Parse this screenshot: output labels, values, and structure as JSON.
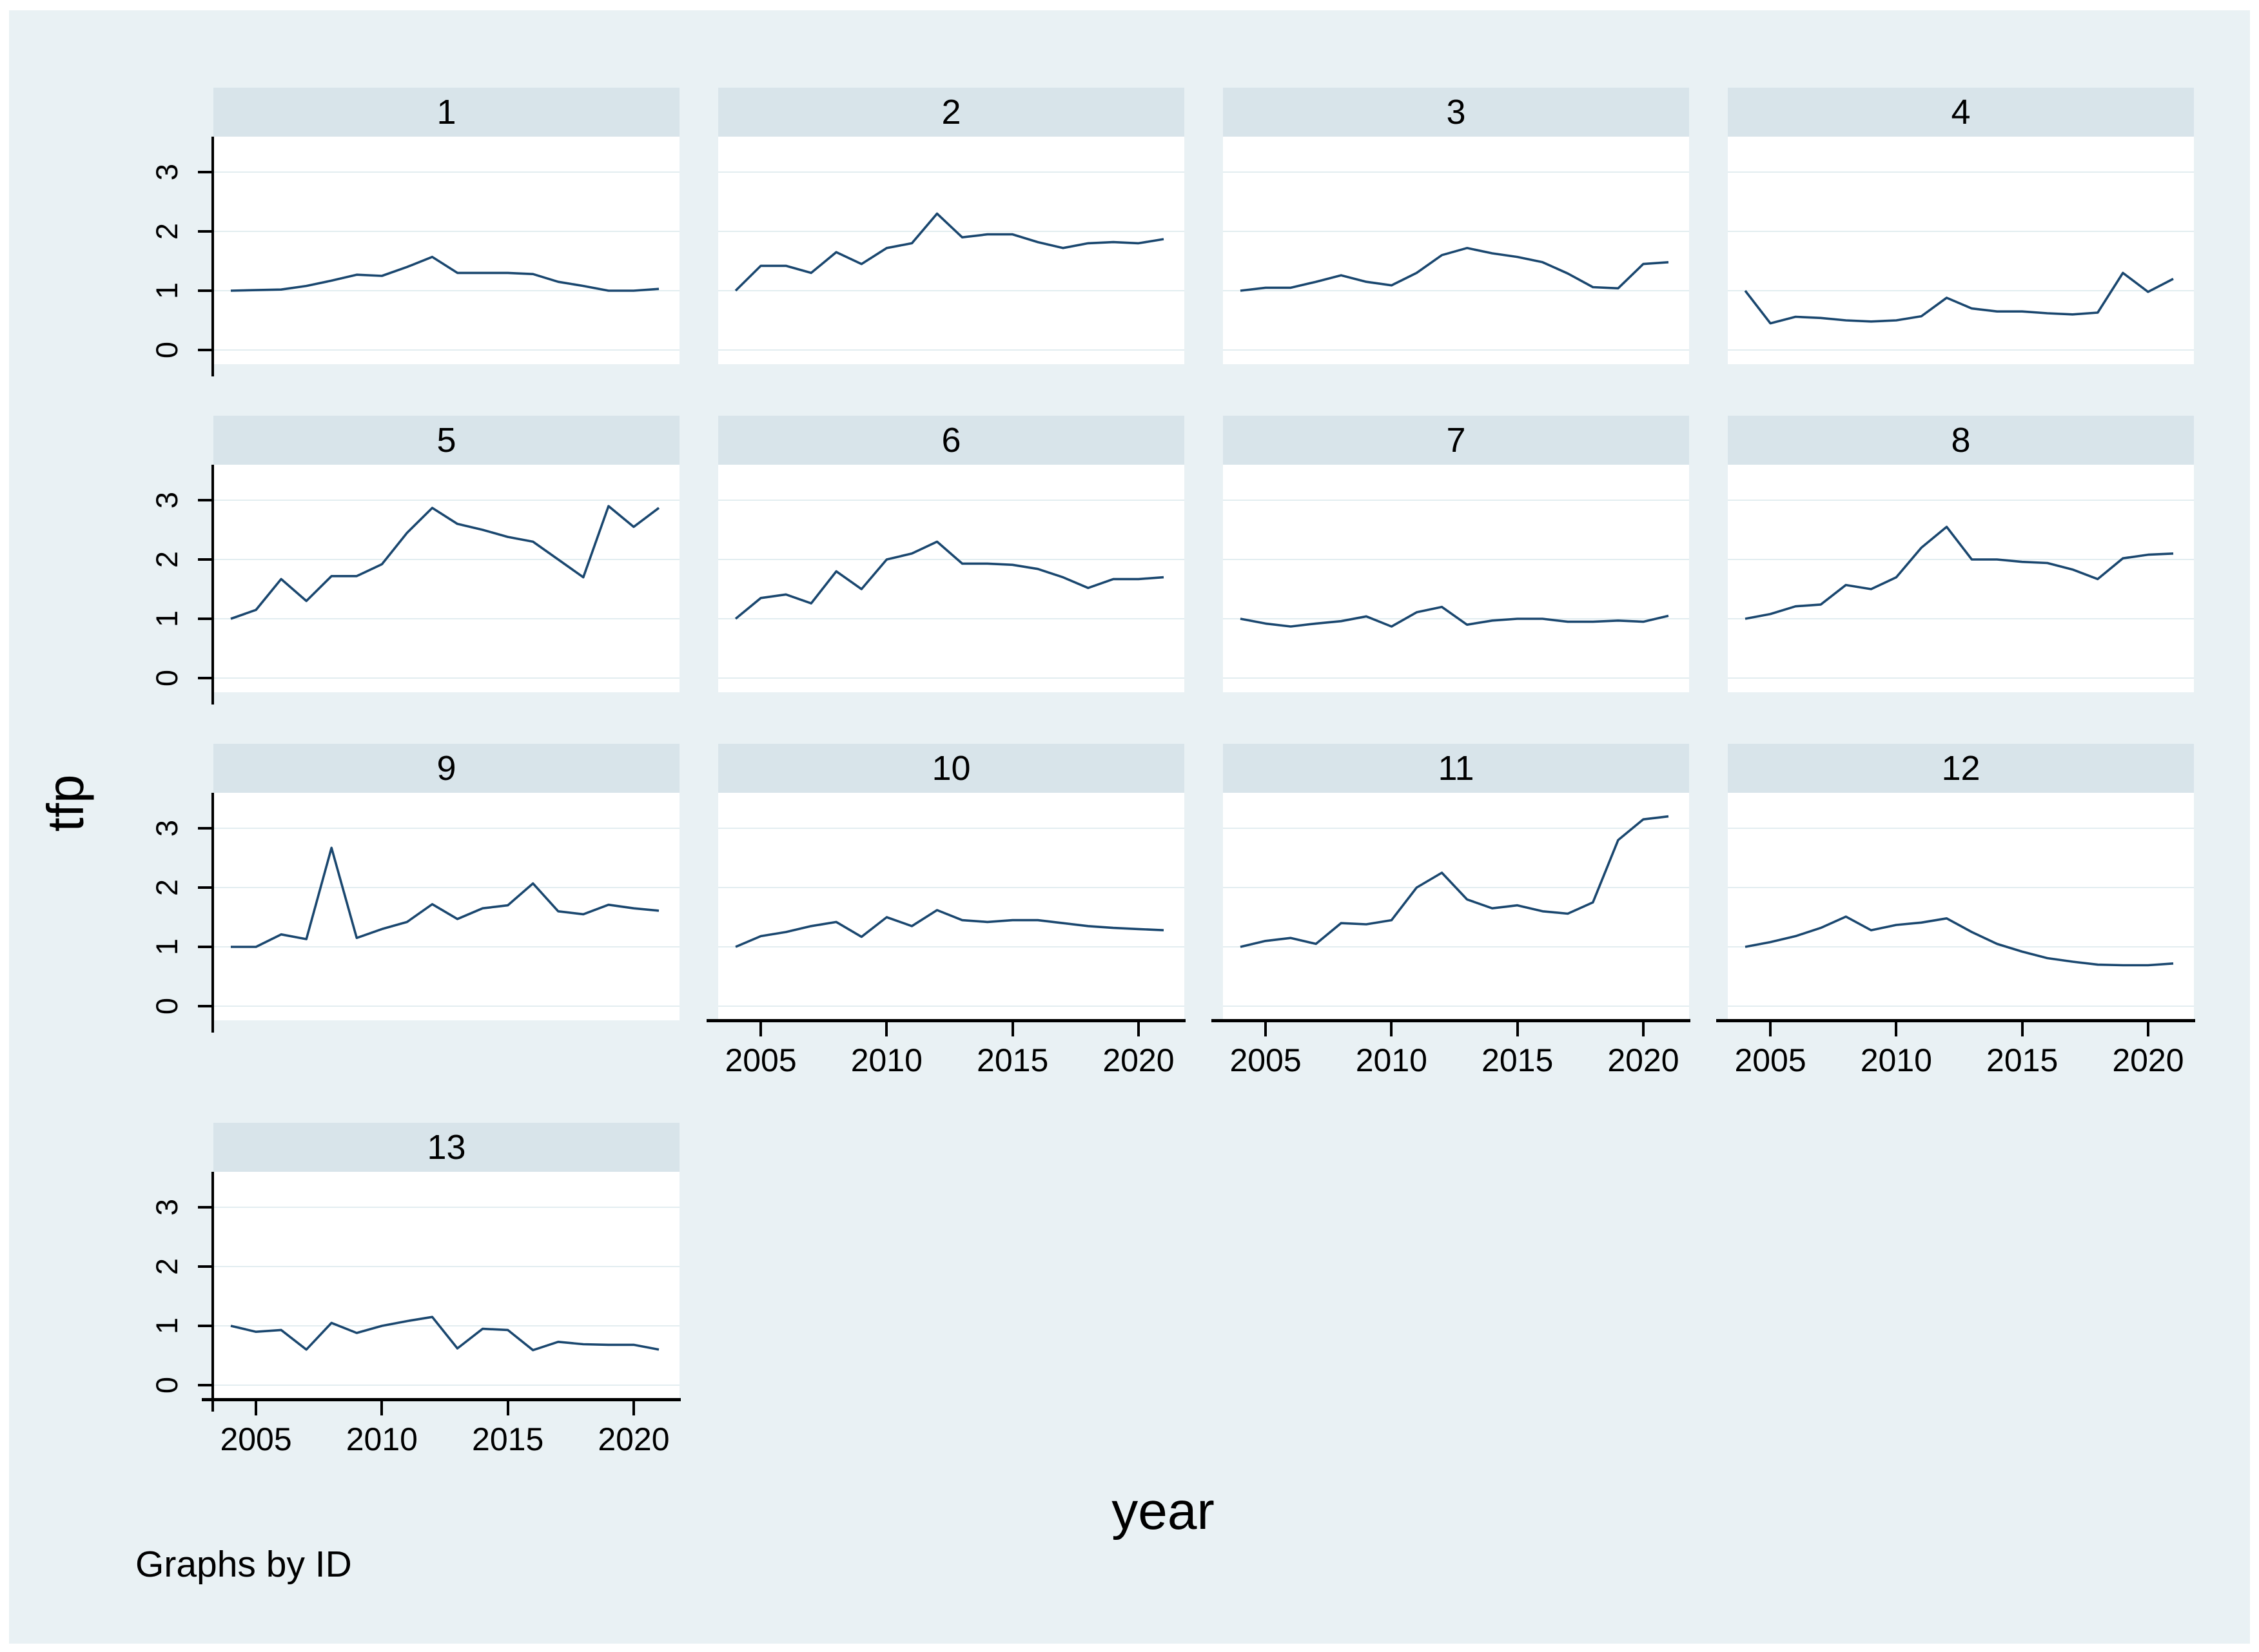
{
  "figure": {
    "ylabel": "tfp",
    "xlabel": "year",
    "note": "Graphs by ID"
  },
  "chart_data": {
    "type": "line",
    "layout": "small-multiples-by-ID",
    "xlabel": "year",
    "ylabel": "tfp",
    "note": "Graphs by ID",
    "x": [
      2004,
      2005,
      2006,
      2007,
      2008,
      2009,
      2010,
      2011,
      2012,
      2013,
      2014,
      2015,
      2016,
      2017,
      2018,
      2019,
      2020,
      2021
    ],
    "x_ticks": [
      2005,
      2010,
      2015,
      2020
    ],
    "y_ticks": [
      0,
      1,
      2,
      3
    ],
    "ylim": [
      -0.24,
      3.6
    ],
    "grid": true,
    "legend": "none",
    "colors": {
      "line": "#1a476f",
      "canvas": "#e9f1f4",
      "strip": "#d8e4ea",
      "gridline": "#e2edf0",
      "axis": "#000000"
    },
    "left_axis_panels": [
      "1",
      "5",
      "9",
      "13"
    ],
    "bottom_axis_panels": [
      "10",
      "11",
      "12",
      "13"
    ],
    "panels": [
      {
        "id": "1",
        "values": [
          1.0,
          1.01,
          1.02,
          1.08,
          1.17,
          1.27,
          1.25,
          1.4,
          1.57,
          1.3,
          1.3,
          1.3,
          1.28,
          1.15,
          1.08,
          1.0,
          1.0,
          1.03
        ]
      },
      {
        "id": "2",
        "values": [
          1.0,
          1.42,
          1.42,
          1.3,
          1.65,
          1.45,
          1.72,
          1.8,
          2.3,
          1.9,
          1.95,
          1.95,
          1.82,
          1.72,
          1.8,
          1.82,
          1.8,
          1.87
        ]
      },
      {
        "id": "3",
        "values": [
          1.0,
          1.05,
          1.05,
          1.15,
          1.26,
          1.15,
          1.09,
          1.3,
          1.6,
          1.72,
          1.63,
          1.57,
          1.48,
          1.29,
          1.06,
          1.04,
          1.45,
          1.48
        ]
      },
      {
        "id": "4",
        "values": [
          1.0,
          0.45,
          0.56,
          0.54,
          0.5,
          0.48,
          0.5,
          0.57,
          0.88,
          0.7,
          0.65,
          0.65,
          0.62,
          0.6,
          0.63,
          1.3,
          0.98,
          1.2
        ]
      },
      {
        "id": "5",
        "values": [
          1.0,
          1.15,
          1.67,
          1.3,
          1.72,
          1.72,
          1.92,
          2.45,
          2.87,
          2.6,
          2.5,
          2.38,
          2.3,
          2.0,
          1.7,
          2.9,
          2.55,
          2.87
        ]
      },
      {
        "id": "6",
        "values": [
          1.0,
          1.35,
          1.41,
          1.26,
          1.8,
          1.5,
          2.0,
          2.1,
          2.3,
          1.93,
          1.93,
          1.91,
          1.84,
          1.7,
          1.52,
          1.67,
          1.67,
          1.7
        ]
      },
      {
        "id": "7",
        "values": [
          1.0,
          0.92,
          0.87,
          0.92,
          0.96,
          1.04,
          0.87,
          1.11,
          1.2,
          0.9,
          0.97,
          1.0,
          1.0,
          0.95,
          0.95,
          0.97,
          0.95,
          1.05
        ]
      },
      {
        "id": "8",
        "values": [
          1.0,
          1.08,
          1.21,
          1.24,
          1.57,
          1.5,
          1.7,
          2.2,
          2.55,
          2.0,
          2.0,
          1.96,
          1.94,
          1.83,
          1.67,
          2.02,
          2.08,
          2.1
        ]
      },
      {
        "id": "9",
        "values": [
          1.0,
          1.0,
          1.21,
          1.13,
          2.67,
          1.15,
          1.3,
          1.42,
          1.72,
          1.47,
          1.65,
          1.7,
          2.07,
          1.6,
          1.55,
          1.71,
          1.65,
          1.61
        ]
      },
      {
        "id": "10",
        "values": [
          1.0,
          1.18,
          1.25,
          1.35,
          1.42,
          1.17,
          1.5,
          1.35,
          1.62,
          1.45,
          1.42,
          1.45,
          1.45,
          1.4,
          1.35,
          1.32,
          1.3,
          1.28
        ]
      },
      {
        "id": "11",
        "values": [
          1.0,
          1.1,
          1.15,
          1.05,
          1.4,
          1.38,
          1.45,
          2.0,
          2.25,
          1.8,
          1.65,
          1.7,
          1.6,
          1.56,
          1.75,
          2.8,
          3.15,
          3.2
        ]
      },
      {
        "id": "12",
        "values": [
          1.0,
          1.08,
          1.18,
          1.32,
          1.51,
          1.28,
          1.37,
          1.41,
          1.48,
          1.25,
          1.05,
          0.92,
          0.81,
          0.75,
          0.7,
          0.69,
          0.69,
          0.72
        ]
      },
      {
        "id": "13",
        "values": [
          1.0,
          0.9,
          0.93,
          0.6,
          1.05,
          0.88,
          1.0,
          1.08,
          1.15,
          0.62,
          0.95,
          0.93,
          0.59,
          0.73,
          0.69,
          0.68,
          0.68,
          0.6
        ]
      }
    ]
  }
}
